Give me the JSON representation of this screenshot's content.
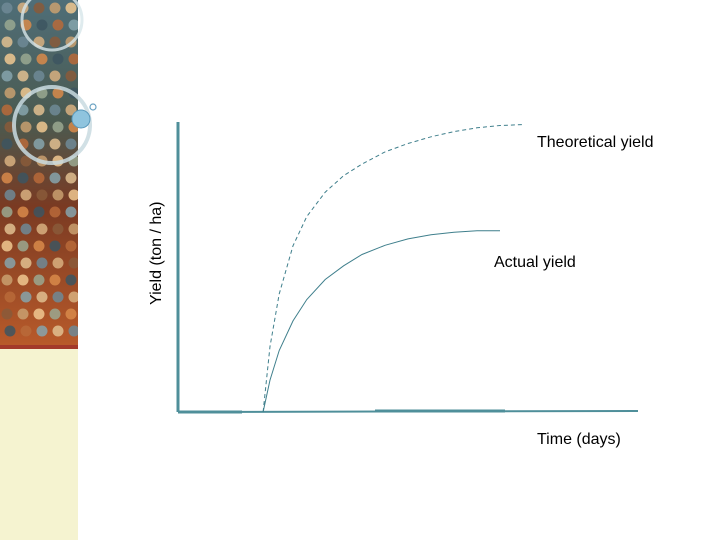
{
  "theme": {
    "sidebar_top": "#5a6a6a",
    "sidebar_bottom": "#f5f3d0",
    "divider": "#a33a2a",
    "axis_color": "#4f8f9a",
    "curve_color": "#3f7f8c"
  },
  "decor": {
    "sidebar_icon": "bokeh-dots-with-rings-decoration"
  },
  "chart_data": {
    "type": "line",
    "title": "",
    "xlabel": "Time (days)",
    "ylabel": "Yield (ton / ha)",
    "xlim": [
      0,
      100
    ],
    "ylim": [
      0,
      100
    ],
    "x_ticks": [],
    "y_ticks": [],
    "grid": false,
    "legend": "none",
    "series": [
      {
        "name": "Theoretical yield",
        "style": "dashed",
        "x": [
          18.5,
          20,
          22,
          25,
          28,
          32,
          36,
          40,
          45,
          50,
          55,
          60,
          65,
          70,
          75
        ],
        "y": [
          0,
          22.6,
          40.7,
          57.3,
          67.4,
          75.8,
          81.5,
          85.5,
          89.7,
          92.6,
          94.9,
          96.7,
          98.0,
          98.8,
          99.1
        ]
      },
      {
        "name": "Actual yield",
        "style": "solid",
        "x": [
          18.5,
          20,
          22,
          25,
          28,
          32,
          36,
          40,
          45,
          50,
          55,
          60,
          65,
          70
        ],
        "y": [
          0,
          11.0,
          21.2,
          31.4,
          38.8,
          45.7,
          50.4,
          54.3,
          57.5,
          59.7,
          61.1,
          62.0,
          62.5,
          62.5
        ]
      }
    ]
  }
}
